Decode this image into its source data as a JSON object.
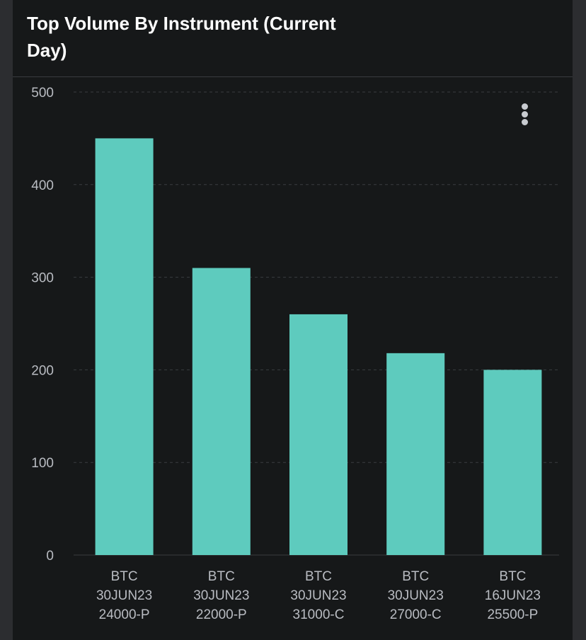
{
  "header": {
    "title": "Top Volume By Instrument (Current Day)"
  },
  "menu": {
    "icon": "more-vertical-icon"
  },
  "colors": {
    "background": "#161819",
    "bar": "#5ecbbe",
    "grid": "#3a3c40",
    "text": "#b9bcc2"
  },
  "chart_data": {
    "type": "bar",
    "title": "Top Volume By Instrument (Current Day)",
    "categories": [
      [
        "BTC",
        "30JUN23",
        "24000-P"
      ],
      [
        "BTC",
        "30JUN23",
        "22000-P"
      ],
      [
        "BTC",
        "30JUN23",
        "31000-C"
      ],
      [
        "BTC",
        "30JUN23",
        "27000-C"
      ],
      [
        "BTC",
        "16JUN23",
        "25500-P"
      ]
    ],
    "values": [
      450,
      310,
      260,
      218,
      200
    ],
    "ylim": [
      0,
      500
    ],
    "yticks": [
      0,
      100,
      200,
      300,
      400,
      500
    ],
    "grid": true,
    "legend": "none"
  }
}
